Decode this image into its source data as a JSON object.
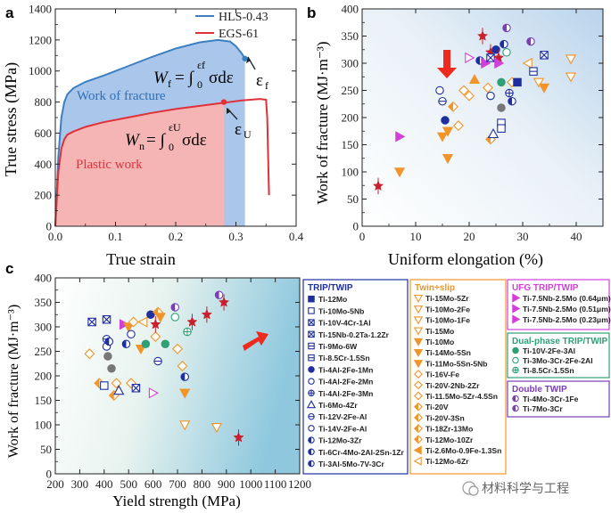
{
  "colors": {
    "hls": "#3b7fc0",
    "egs": "#e0313b",
    "blue_fill": "#aac6ea",
    "red_fill": "#f6b5b5",
    "navy": "#1f2fa0",
    "orange": "#f0952a",
    "magenta": "#d33fd8",
    "teal": "#2f9f76",
    "purple": "#7a3fb5",
    "arrow": "#ee2a1e",
    "star": "#c8202c",
    "gray": "#777777"
  },
  "chart_data": [
    {
      "type": "line",
      "panel": "a",
      "panel_label": "a",
      "xlabel": "True strain",
      "ylabel": "True stress (MPa)",
      "xlim": [
        0,
        0.4
      ],
      "ylim": [
        0,
        1400
      ],
      "xticks": [
        "0.0",
        "0.1",
        "0.2",
        "0.3",
        "0.4"
      ],
      "yticks": [
        "0",
        "200",
        "400",
        "600",
        "800",
        "1000",
        "1200",
        "1400"
      ],
      "legend": [
        "HLS-0.43",
        "EGS-61"
      ],
      "series": [
        {
          "name": "HLS-0.43",
          "x": [
            0,
            0.005,
            0.01,
            0.015,
            0.02,
            0.03,
            0.05,
            0.08,
            0.12,
            0.16,
            0.2,
            0.24,
            0.27,
            0.29,
            0.3,
            0.31,
            0.315
          ],
          "y": [
            0,
            450,
            700,
            800,
            850,
            890,
            930,
            970,
            1030,
            1090,
            1145,
            1185,
            1200,
            1190,
            1160,
            1110,
            1080
          ]
        },
        {
          "name": "EGS-61",
          "x": [
            0,
            0.005,
            0.01,
            0.015,
            0.02,
            0.03,
            0.05,
            0.08,
            0.12,
            0.16,
            0.2,
            0.24,
            0.28,
            0.31,
            0.34,
            0.35,
            0.352,
            0.355
          ],
          "y": [
            0,
            350,
            500,
            560,
            590,
            610,
            640,
            670,
            700,
            730,
            755,
            775,
            795,
            810,
            820,
            815,
            700,
            200
          ]
        }
      ],
      "annotations": {
        "work_of_fracture": "Work of fracture",
        "plastic_work": "Plastic work",
        "eq_wf_lhs": "W",
        "eq_wf_sub": "f",
        "eq_wf_rhs": "= ∫",
        "eq_wf_upper": "εf",
        "eq_wf_lower": "0",
        "eq_wf_tail": "σdε",
        "eq_wn_lhs": "W",
        "eq_wn_sub": "n",
        "eq_wn_rhs": "= ∫",
        "eq_wn_upper": "εU",
        "eq_wn_lower": "0",
        "eq_wn_tail": "σdε",
        "eps_f": "ε",
        "eps_f_sub": "f",
        "eps_u": "ε",
        "eps_u_sub": "U"
      },
      "points": [
        {
          "name": "eps_f",
          "x": 0.315,
          "y": 1080
        },
        {
          "name": "eps_u",
          "x": 0.28,
          "y": 800
        }
      ]
    },
    {
      "type": "scatter",
      "panel": "b",
      "panel_label": "b",
      "xlabel": "Uniform elongation (%)",
      "ylabel": "Work of fracture (MJ·m⁻³)",
      "xlim": [
        0,
        45
      ],
      "ylim": [
        0,
        400
      ],
      "xticks": [
        "0",
        "10",
        "20",
        "30",
        "40"
      ],
      "yticks": [
        "0",
        "50",
        "100",
        "150",
        "200",
        "250",
        "300",
        "350",
        "400"
      ],
      "points": [
        {
          "x": 3,
          "y": 74,
          "marker": "star",
          "color": "#c8202c"
        },
        {
          "x": 7,
          "y": 100,
          "marker": "tri_down",
          "color": "#f0952a"
        },
        {
          "x": 7,
          "y": 165,
          "marker": "tri_right",
          "color": "#d33fd8"
        },
        {
          "x": 14.5,
          "y": 250,
          "marker": "circle_open",
          "color": "#1f2fa0"
        },
        {
          "x": 15,
          "y": 165,
          "marker": "tri_down",
          "color": "#f0952a"
        },
        {
          "x": 15,
          "y": 230,
          "marker": "circle_vline",
          "color": "#1f2fa0"
        },
        {
          "x": 15.5,
          "y": 195,
          "marker": "circle",
          "color": "#1f2fa0"
        },
        {
          "x": 16,
          "y": 175,
          "marker": "tri_down",
          "color": "#f0952a"
        },
        {
          "x": 16,
          "y": 125,
          "marker": "tri_down",
          "color": "#f0952a"
        },
        {
          "x": 17,
          "y": 220,
          "marker": "diamond_half",
          "color": "#f0952a"
        },
        {
          "x": 18,
          "y": 185,
          "marker": "diamond_open",
          "color": "#f0952a"
        },
        {
          "x": 19,
          "y": 250,
          "marker": "diamond_open",
          "color": "#f0952a"
        },
        {
          "x": 20,
          "y": 240,
          "marker": "diamond_open",
          "color": "#f0952a"
        },
        {
          "x": 20,
          "y": 310,
          "marker": "tri_right_open",
          "color": "#d33fd8"
        },
        {
          "x": 21,
          "y": 270,
          "marker": "tri_up",
          "color": "#f0952a"
        },
        {
          "x": 22,
          "y": 305,
          "marker": "circle_half",
          "color": "#1f2fa0"
        },
        {
          "x": 22.5,
          "y": 350,
          "marker": "star",
          "color": "#c8202c"
        },
        {
          "x": 23,
          "y": 300,
          "marker": "tri_right",
          "color": "#d33fd8"
        },
        {
          "x": 23.5,
          "y": 255,
          "marker": "diamond_open",
          "color": "#f0952a"
        },
        {
          "x": 24,
          "y": 320,
          "marker": "star",
          "color": "#c8202c"
        },
        {
          "x": 24,
          "y": 310,
          "marker": "square_x",
          "color": "#1f2fa0"
        },
        {
          "x": 24,
          "y": 240,
          "marker": "circle_open",
          "color": "#1f2fa0"
        },
        {
          "x": 24,
          "y": 160,
          "marker": "diamond_half",
          "color": "#f0952a"
        },
        {
          "x": 24.5,
          "y": 170,
          "marker": "tri_up_open",
          "color": "#1f2fa0"
        },
        {
          "x": 25,
          "y": 325,
          "marker": "circle",
          "color": "#1f2fa0"
        },
        {
          "x": 25.5,
          "y": 310,
          "marker": "star",
          "color": "#c8202c"
        },
        {
          "x": 25.5,
          "y": 300,
          "marker": "tri_right",
          "color": "#d33fd8"
        },
        {
          "x": 26,
          "y": 265,
          "marker": "circle",
          "color": "#2f9f76"
        },
        {
          "x": 26,
          "y": 218,
          "marker": "circle",
          "color": "#777777"
        },
        {
          "x": 26,
          "y": 190,
          "marker": "square_open",
          "color": "#1f2fa0"
        },
        {
          "x": 26,
          "y": 180,
          "marker": "square_open",
          "color": "#1f2fa0"
        },
        {
          "x": 26.5,
          "y": 335,
          "marker": "circle_half",
          "color": "#1f2fa0"
        },
        {
          "x": 27,
          "y": 365,
          "marker": "circle_half",
          "color": "#7a3fb5"
        },
        {
          "x": 27,
          "y": 320,
          "marker": "circle_open",
          "color": "#2f9f76"
        },
        {
          "x": 27.5,
          "y": 245,
          "marker": "circle_plus",
          "color": "#1f2fa0"
        },
        {
          "x": 28,
          "y": 265,
          "marker": "diamond_open",
          "color": "#f0952a"
        },
        {
          "x": 28,
          "y": 230,
          "marker": "circle_half",
          "color": "#1f2fa0"
        },
        {
          "x": 29,
          "y": 265,
          "marker": "square",
          "color": "#1f2fa0"
        },
        {
          "x": 31,
          "y": 300,
          "marker": "tri_left_open",
          "color": "#f0952a"
        },
        {
          "x": 31.5,
          "y": 340,
          "marker": "circle_half",
          "color": "#7a3fb5"
        },
        {
          "x": 32,
          "y": 285,
          "marker": "square_line",
          "color": "#1f2fa0"
        },
        {
          "x": 33,
          "y": 265,
          "marker": "tri_down_open",
          "color": "#f0952a"
        },
        {
          "x": 34,
          "y": 315,
          "marker": "square_x",
          "color": "#1f2fa0"
        },
        {
          "x": 34,
          "y": 255,
          "marker": "tri_down",
          "color": "#f0952a"
        },
        {
          "x": 39,
          "y": 308,
          "marker": "tri_down_open",
          "color": "#f0952a"
        },
        {
          "x": 39,
          "y": 275,
          "marker": "tri_down_open",
          "color": "#f0952a"
        }
      ]
    },
    {
      "type": "scatter",
      "panel": "c",
      "panel_label": "c",
      "xlabel": "Yield strength (MPa)",
      "ylabel": "Work of fracture (MJ·m⁻³)",
      "xlim": [
        200,
        1200
      ],
      "ylim": [
        0,
        400
      ],
      "xticks": [
        "200",
        "300",
        "400",
        "500",
        "600",
        "700",
        "800",
        "900",
        "1000",
        "1100",
        "1200"
      ],
      "yticks": [
        "0",
        "50",
        "100",
        "150",
        "200",
        "250",
        "300",
        "350",
        "400"
      ],
      "points": [
        {
          "x": 340,
          "y": 245,
          "marker": "diamond_open",
          "color": "#f0952a"
        },
        {
          "x": 350,
          "y": 310,
          "marker": "square_x",
          "color": "#1f2fa0"
        },
        {
          "x": 380,
          "y": 185,
          "marker": "diamond_half",
          "color": "#f0952a"
        },
        {
          "x": 400,
          "y": 180,
          "marker": "square_open",
          "color": "#1f2fa0"
        },
        {
          "x": 410,
          "y": 315,
          "marker": "square_x",
          "color": "#1f2fa0"
        },
        {
          "x": 410,
          "y": 275,
          "marker": "circle_vline",
          "color": "#1f2fa0"
        },
        {
          "x": 410,
          "y": 260,
          "marker": "circle_open",
          "color": "#1f2fa0"
        },
        {
          "x": 415,
          "y": 240,
          "marker": "circle",
          "color": "#777777"
        },
        {
          "x": 420,
          "y": 270,
          "marker": "circle_half",
          "color": "#1f2fa0"
        },
        {
          "x": 430,
          "y": 215,
          "marker": "circle",
          "color": "#777777"
        },
        {
          "x": 440,
          "y": 160,
          "marker": "diamond_half",
          "color": "#f0952a"
        },
        {
          "x": 450,
          "y": 185,
          "marker": "diamond_open",
          "color": "#f0952a"
        },
        {
          "x": 460,
          "y": 170,
          "marker": "tri_up_open",
          "color": "#1f2fa0"
        },
        {
          "x": 480,
          "y": 305,
          "marker": "tri_right",
          "color": "#d33fd8"
        },
        {
          "x": 490,
          "y": 265,
          "marker": "circle_half",
          "color": "#1f2fa0"
        },
        {
          "x": 500,
          "y": 300,
          "marker": "tri_down",
          "color": "#f0952a"
        },
        {
          "x": 510,
          "y": 185,
          "marker": "diamond_open",
          "color": "#f0952a"
        },
        {
          "x": 510,
          "y": 285,
          "marker": "circle_open",
          "color": "#1f2fa0"
        },
        {
          "x": 520,
          "y": 310,
          "marker": "diamond_open",
          "color": "#f0952a"
        },
        {
          "x": 530,
          "y": 175,
          "marker": "square_x",
          "color": "#1f2fa0"
        },
        {
          "x": 550,
          "y": 255,
          "marker": "tri_down",
          "color": "#f0952a"
        },
        {
          "x": 560,
          "y": 310,
          "marker": "tri_left_open",
          "color": "#f0952a"
        },
        {
          "x": 570,
          "y": 265,
          "marker": "circle",
          "color": "#2f9f76"
        },
        {
          "x": 590,
          "y": 325,
          "marker": "circle",
          "color": "#1f2fa0"
        },
        {
          "x": 600,
          "y": 165,
          "marker": "tri_right_open",
          "color": "#d33fd8"
        },
        {
          "x": 610,
          "y": 280,
          "marker": "diamond_open",
          "color": "#f0952a"
        },
        {
          "x": 610,
          "y": 305,
          "marker": "star",
          "color": "#c8202c"
        },
        {
          "x": 620,
          "y": 330,
          "marker": "diamond_half",
          "color": "#f0952a"
        },
        {
          "x": 620,
          "y": 230,
          "marker": "circle_vline",
          "color": "#1f2fa0"
        },
        {
          "x": 630,
          "y": 320,
          "marker": "tri_down",
          "color": "#f0952a"
        },
        {
          "x": 650,
          "y": 265,
          "marker": "circle",
          "color": "#2f9f76"
        },
        {
          "x": 690,
          "y": 340,
          "marker": "circle_half",
          "color": "#7a3fb5"
        },
        {
          "x": 690,
          "y": 320,
          "marker": "circle_open",
          "color": "#2f9f76"
        },
        {
          "x": 700,
          "y": 255,
          "marker": "diamond_open",
          "color": "#f0952a"
        },
        {
          "x": 720,
          "y": 220,
          "marker": "diamond_open",
          "color": "#f0952a"
        },
        {
          "x": 730,
          "y": 198,
          "marker": "circle_half",
          "color": "#1f2fa0"
        },
        {
          "x": 730,
          "y": 100,
          "marker": "tri_down_open",
          "color": "#f0952a"
        },
        {
          "x": 730,
          "y": 165,
          "marker": "tri_down",
          "color": "#f0952a"
        },
        {
          "x": 740,
          "y": 290,
          "marker": "circle_plus",
          "color": "#2f9f76"
        },
        {
          "x": 760,
          "y": 310,
          "marker": "star",
          "color": "#c8202c"
        },
        {
          "x": 820,
          "y": 325,
          "marker": "star",
          "color": "#c8202c"
        },
        {
          "x": 860,
          "y": 95,
          "marker": "tri_down_open",
          "color": "#f0952a"
        },
        {
          "x": 870,
          "y": 365,
          "marker": "circle_half",
          "color": "#7a3fb5"
        },
        {
          "x": 890,
          "y": 350,
          "marker": "star",
          "color": "#c8202c"
        },
        {
          "x": 950,
          "y": 74,
          "marker": "star",
          "color": "#c8202c"
        }
      ]
    }
  ],
  "legend_groups": [
    {
      "title": "TRIP/TWIP",
      "color": "#1f2fa0",
      "items": [
        {
          "label": "Ti-12Mo",
          "marker": "square"
        },
        {
          "label": "Ti-10Mo-5Nb",
          "marker": "square_open"
        },
        {
          "label": "Ti-10V-4Cr-1Al",
          "marker": "square_x"
        },
        {
          "label": "Ti-15Nb-0.2Ta-1.2Zr",
          "marker": "square_x"
        },
        {
          "label": "Ti-9Mo-6W",
          "marker": "square_line"
        },
        {
          "label": "Ti-8.5Cr-1.5Sn",
          "marker": "square_line"
        },
        {
          "label": "Ti-4Al-2Fe-1Mn",
          "marker": "circle"
        },
        {
          "label": "Ti-4Al-2Fe-2Mn",
          "marker": "circle_open"
        },
        {
          "label": "Ti-4Al-2Fe-3Mn",
          "marker": "circle_plus"
        },
        {
          "label": "Ti-6Mo-4Zr",
          "marker": "tri_up_open"
        },
        {
          "label": "Ti-12V-2Fe-Al",
          "marker": "circle_vline"
        },
        {
          "label": "Ti-14V-2Fe-Al",
          "marker": "circle_open"
        },
        {
          "label": "Ti-12Mo-3Zr",
          "marker": "circle_half"
        },
        {
          "label": "Ti-6Cr-4Mo-2Al-2Sn-1Zr",
          "marker": "circle_half"
        },
        {
          "label": "Ti-3Al-5Mo-7V-3Cr",
          "marker": "circle_half"
        }
      ]
    },
    {
      "title": "Twin+slip",
      "color": "#f0952a",
      "items": [
        {
          "label": "Ti-15Mo-5Zr",
          "marker": "tri_down_open"
        },
        {
          "label": "Ti-10Mo-2Fe",
          "marker": "tri_down_open"
        },
        {
          "label": "Ti-10Mo-1Fe",
          "marker": "tri_down_open"
        },
        {
          "label": "Ti-15Mo",
          "marker": "tri_down_open"
        },
        {
          "label": "Ti-10Mo",
          "marker": "tri_down"
        },
        {
          "label": "Ti-14Mo-5Sn",
          "marker": "tri_down"
        },
        {
          "label": "Ti-11Mo-5Sn-5Nb",
          "marker": "tri_down"
        },
        {
          "label": "Ti-16V-Fe",
          "marker": "diamond_open"
        },
        {
          "label": "Ti-20V-2Nb-2Zr",
          "marker": "diamond_open"
        },
        {
          "label": "Ti-11.5Mo-5Zr-4.5Sn",
          "marker": "diamond_open"
        },
        {
          "label": "Ti-20V",
          "marker": "diamond_half"
        },
        {
          "label": "Ti-20V-3Sn",
          "marker": "diamond_half"
        },
        {
          "label": "Ti-18Zr-13Mo",
          "marker": "diamond_half"
        },
        {
          "label": "Ti-12Mo-10Zr",
          "marker": "diamond_half"
        },
        {
          "label": "Ti-2.6Mo-0.9Fe-1.3Sn",
          "marker": "tri_left"
        },
        {
          "label": "Ti-12Mo-6Zr",
          "marker": "tri_left_open"
        }
      ]
    },
    {
      "title": "UFG TRIP/TWIP",
      "color": "#d33fd8",
      "items": [
        {
          "label": "Ti-7.5Nb-2.5Mo (0.64μm)",
          "marker": "tri_right"
        },
        {
          "label": "Ti-7.5Nb-2.5Mo (0.51μm)",
          "marker": "tri_right"
        },
        {
          "label": "Ti-7.5Nb-2.5Mo (0.23μm)",
          "marker": "tri_right"
        }
      ]
    },
    {
      "title": "Dual-phase TRIP/TWIP",
      "color": "#2f9f76",
      "items": [
        {
          "label": "Ti-10V-2Fe-3Al",
          "marker": "circle"
        },
        {
          "label": "Ti-3Mo-3Cr-2Fe-2Al",
          "marker": "circle_open"
        },
        {
          "label": "Ti-8.5Cr-1.5Sn",
          "marker": "circle_plus"
        }
      ]
    },
    {
      "title": "Double TWIP",
      "color": "#7a3fb5",
      "items": [
        {
          "label": "Ti-4Mo-3Cr-1Fe",
          "marker": "circle_half"
        },
        {
          "label": "Ti-7Mo-3Cr",
          "marker": "circle_half"
        }
      ]
    }
  ],
  "watermark": "材料科学与工程"
}
